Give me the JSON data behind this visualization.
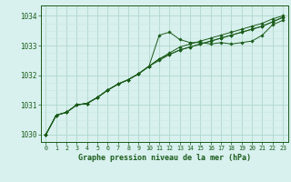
{
  "xlabel": "Graphe pression niveau de la mer (hPa)",
  "bg_color": "#d8f0ee",
  "grid_major_color": "#b0d8cc",
  "grid_minor_color": "#c8e8e0",
  "line_color": "#1a5c1a",
  "xlim": [
    -0.5,
    23.5
  ],
  "ylim": [
    1029.75,
    1034.35
  ],
  "yticks": [
    1030,
    1031,
    1032,
    1033,
    1034
  ],
  "xticks": [
    0,
    1,
    2,
    3,
    4,
    5,
    6,
    7,
    8,
    9,
    10,
    11,
    12,
    13,
    14,
    15,
    16,
    17,
    18,
    19,
    20,
    21,
    22,
    23
  ],
  "series": [
    [
      1030.0,
      1030.65,
      1030.75,
      1031.0,
      1031.05,
      1031.25,
      1031.5,
      1031.7,
      1031.85,
      1032.05,
      1032.3,
      1033.35,
      1033.45,
      1033.2,
      1033.1,
      1033.1,
      1033.05,
      1033.1,
      1033.05,
      1033.1,
      1033.15,
      1033.35,
      1033.7,
      1033.85
    ],
    [
      1030.0,
      1030.65,
      1030.75,
      1031.0,
      1031.05,
      1031.25,
      1031.5,
      1031.7,
      1031.85,
      1032.05,
      1032.3,
      1032.55,
      1032.75,
      1032.95,
      1033.05,
      1033.15,
      1033.25,
      1033.35,
      1033.45,
      1033.55,
      1033.65,
      1033.75,
      1033.9,
      1034.0
    ],
    [
      1030.0,
      1030.65,
      1030.75,
      1031.0,
      1031.05,
      1031.25,
      1031.5,
      1031.7,
      1031.85,
      1032.05,
      1032.3,
      1032.55,
      1032.7,
      1032.85,
      1032.95,
      1033.05,
      1033.15,
      1033.25,
      1033.35,
      1033.45,
      1033.55,
      1033.65,
      1033.8,
      1033.95
    ],
    [
      1030.0,
      1030.65,
      1030.75,
      1031.0,
      1031.05,
      1031.25,
      1031.5,
      1031.7,
      1031.85,
      1032.05,
      1032.3,
      1032.5,
      1032.7,
      1032.85,
      1032.95,
      1033.05,
      1033.15,
      1033.25,
      1033.35,
      1033.45,
      1033.55,
      1033.65,
      1033.8,
      1033.95
    ]
  ]
}
